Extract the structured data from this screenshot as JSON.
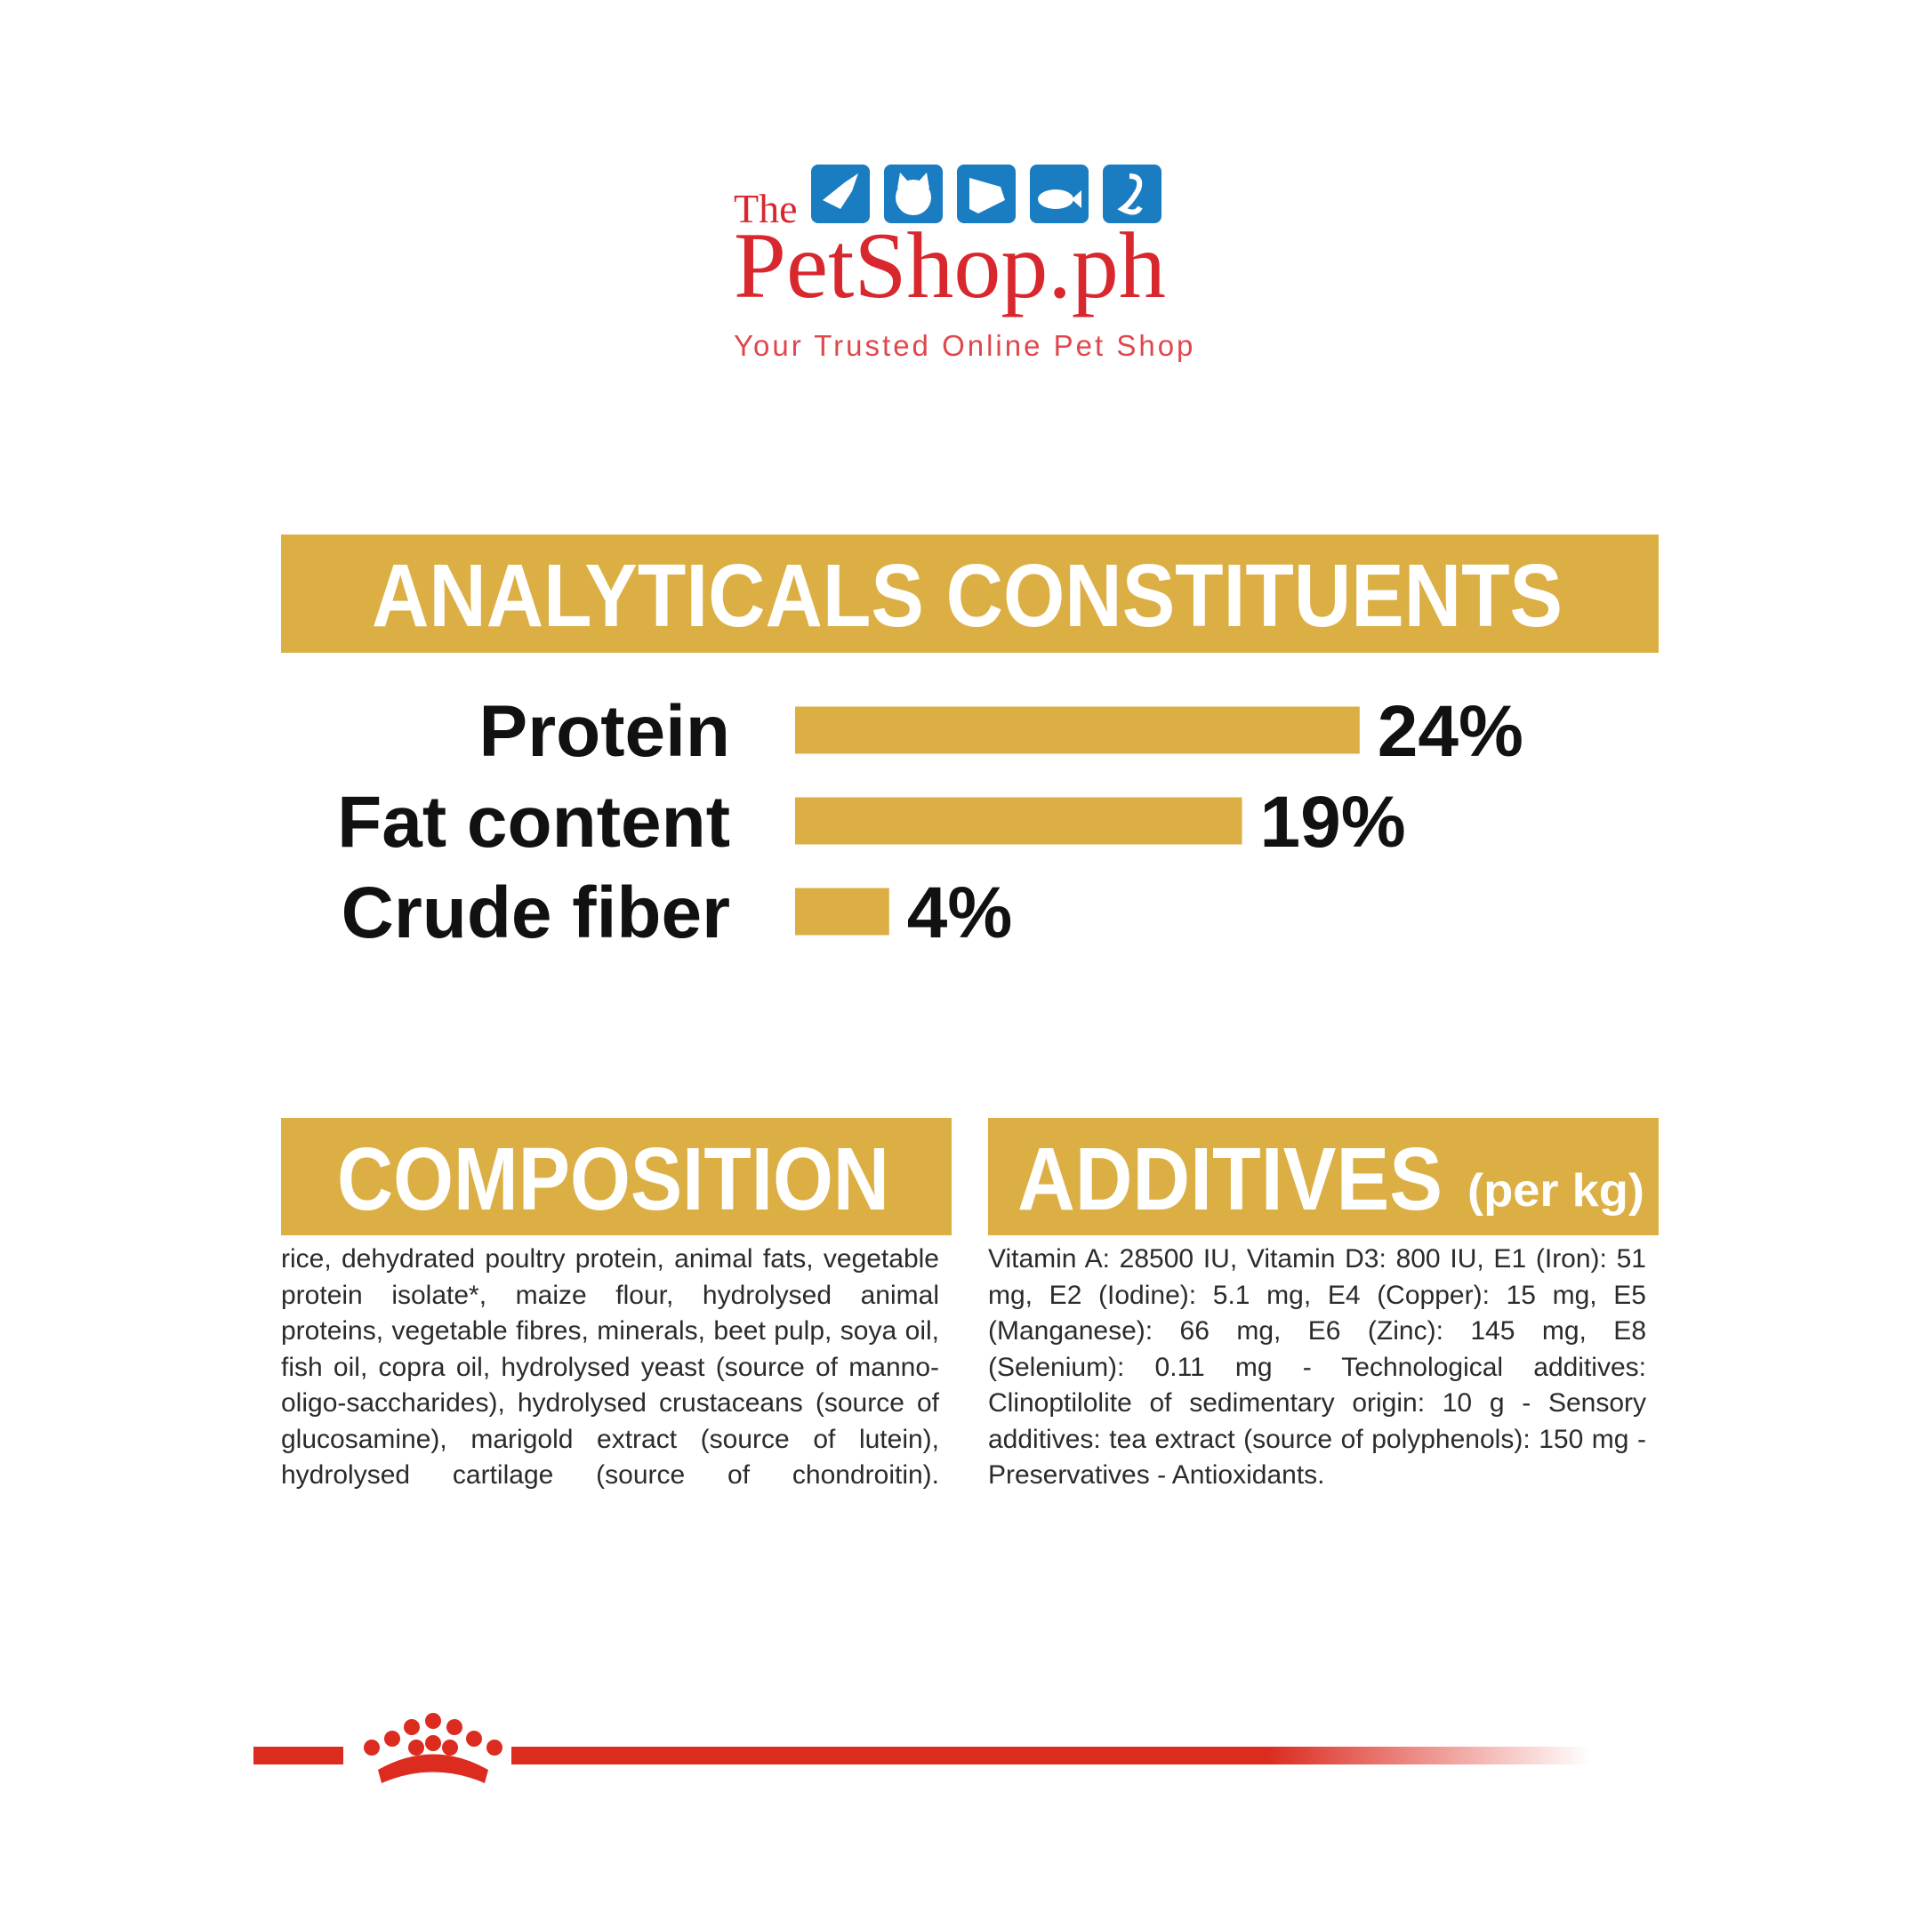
{
  "logo": {
    "prefix": "The",
    "name": "PetShop.ph",
    "tagline": "Your Trusted Online Pet Shop"
  },
  "chart_data": {
    "type": "bar",
    "title": "ANALYTICALS CONSTITUENTS",
    "categories": [
      "Protein",
      "Fat content",
      "Crude fiber"
    ],
    "values": [
      24,
      19,
      4
    ],
    "value_labels": [
      "24%",
      "19%",
      "4%"
    ],
    "color": "#dcaf45"
  },
  "sections": {
    "composition": {
      "title": "COMPOSITION",
      "text": "rice, dehydrated poultry protein, animal fats, vegetable protein isolate*, maize flour, hydrolysed animal proteins, vegetable fibres, minerals, beet pulp, soya oil, fish oil, copra oil, hydrolysed yeast (source of manno-oligo-saccharides), hydrolysed crustaceans (source of glucosamine), marigold extract (source of lutein), hydrolysed cartilage (source of chondroitin)."
    },
    "additives": {
      "title": "ADDITIVES",
      "note": "(per kg)",
      "text": "Vitamin A: 28500 IU, Vitamin D3: 800 IU, E1 (Iron): 51 mg, E2 (Iodine): 5.1 mg, E4 (Copper): 15 mg, E5 (Manganese): 66 mg, E6 (Zinc): 145 mg, E8 (Selenium): 0.11 mg - Technological additives: Clinoptilolite of sedimentary origin: 10 g - Sensory additives: tea extract (source of polyphenols): 150 mg - Preservatives - Antioxidants."
    }
  }
}
